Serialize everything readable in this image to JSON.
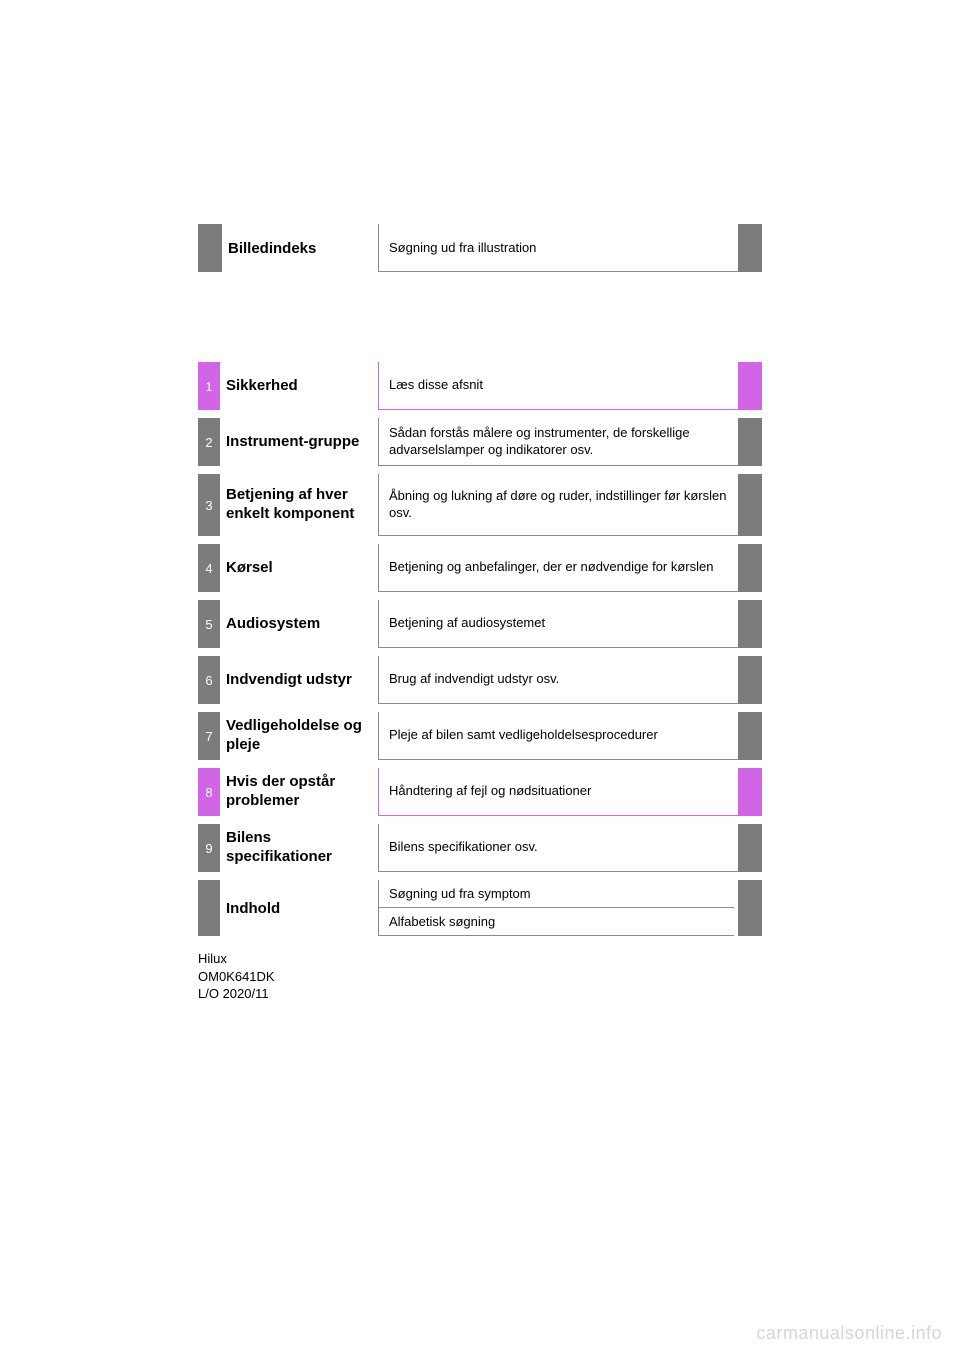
{
  "colors": {
    "gray": "#7c7c7c",
    "magenta": "#d265e5",
    "border_gray": "#8a8a8a",
    "text": "#000000",
    "watermark": "#d6d6d6",
    "background": "#ffffff"
  },
  "top": {
    "title": "Billedindeks",
    "desc": "Søgning ud fra illustration"
  },
  "chapters": [
    {
      "num": "1",
      "title": "Sikkerhed",
      "desc": "Læs disse afsnit",
      "accent": "magenta",
      "tall": false
    },
    {
      "num": "2",
      "title": "Instrument-gruppe",
      "desc": "Sådan forstås målere og instrumenter, de forskellige advarselslamper og indikatorer osv.",
      "accent": "gray",
      "tall": false
    },
    {
      "num": "3",
      "title": "Betjening af hver enkelt komponent",
      "desc": "Åbning og lukning af døre og ruder, indstillinger før kørslen osv.",
      "accent": "gray",
      "tall": true
    },
    {
      "num": "4",
      "title": "Kørsel",
      "desc": "Betjening og anbefalinger, der er nødvendige for kørslen",
      "accent": "gray",
      "tall": false
    },
    {
      "num": "5",
      "title": "Audiosystem",
      "desc": "Betjening af audiosystemet",
      "accent": "gray",
      "tall": false
    },
    {
      "num": "6",
      "title": "Indvendigt udstyr",
      "desc": "Brug af indvendigt udstyr osv.",
      "accent": "gray",
      "tall": false
    },
    {
      "num": "7",
      "title": "Vedligeholdelse og pleje",
      "desc": "Pleje af bilen samt vedligeholdelsesprocedurer",
      "accent": "gray",
      "tall": false
    },
    {
      "num": "8",
      "title": "Hvis der opstår problemer",
      "desc": "Håndtering af fejl og nødsituationer",
      "accent": "magenta",
      "tall": false
    },
    {
      "num": "9",
      "title": "Bilens specifikationer",
      "desc": "Bilens specifikationer osv.",
      "accent": "gray",
      "tall": false
    }
  ],
  "indhold": {
    "title": "Indhold",
    "line1": "Søgning ud fra symptom",
    "line2": "Alfabetisk søgning"
  },
  "footer": {
    "l1": "Hilux",
    "l2": "OM0K641DK",
    "l3": "L/O 2020/11"
  },
  "watermark": "carmanualsonline.info"
}
